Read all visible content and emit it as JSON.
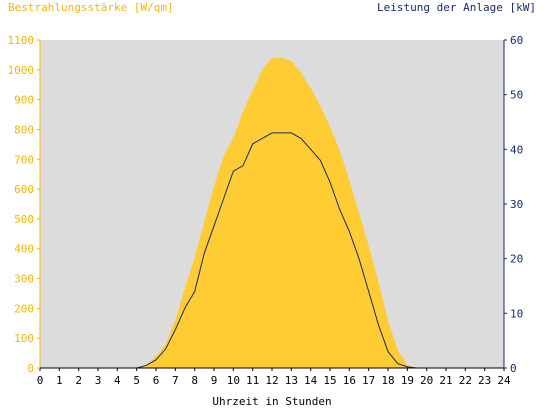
{
  "chart_data": {
    "type": "area",
    "left_axis_label": "Bestrahlungsstärke [W/qm]",
    "right_axis_label": "Leistung der Anlage [kW]",
    "xlabel": "Uhrzeit in Stunden",
    "xlim": [
      0,
      24
    ],
    "y_left_lim": [
      0,
      1100
    ],
    "y_right_lim": [
      0,
      60
    ],
    "x_ticks": [
      "0",
      "1",
      "2",
      "3",
      "4",
      "5",
      "6",
      "7",
      "8",
      "9",
      "10",
      "11",
      "12",
      "13",
      "14",
      "15",
      "16",
      "17",
      "18",
      "19",
      "20",
      "21",
      "22",
      "23",
      "24"
    ],
    "y_left_ticks": [
      "0",
      "100",
      "200",
      "300",
      "400",
      "500",
      "600",
      "700",
      "800",
      "900",
      "1000",
      "1100"
    ],
    "y_right_ticks": [
      "0",
      "10",
      "20",
      "30",
      "40",
      "50",
      "60"
    ],
    "grid": false,
    "colors": {
      "irradiance": "#ffcc33",
      "power": "#1a2a6c",
      "background": "#dcdcdc"
    },
    "series": [
      {
        "name": "Bestrahlungsstärke [W/qm]",
        "axis": "left",
        "type": "area",
        "x": [
          0,
          5.0,
          5.5,
          6.0,
          6.5,
          7.0,
          7.5,
          8.0,
          8.5,
          9.0,
          9.5,
          10.0,
          10.5,
          11.0,
          11.5,
          12.0,
          12.5,
          13.0,
          13.5,
          14.0,
          14.5,
          15.0,
          15.5,
          16.0,
          16.5,
          17.0,
          17.5,
          18.0,
          18.5,
          19.0,
          19.5,
          24
        ],
        "values": [
          0,
          0,
          10,
          40,
          80,
          160,
          270,
          370,
          490,
          610,
          710,
          770,
          860,
          930,
          1000,
          1040,
          1040,
          1030,
          990,
          940,
          880,
          810,
          730,
          630,
          520,
          410,
          290,
          160,
          60,
          10,
          0,
          0
        ]
      },
      {
        "name": "Leistung der Anlage [kW]",
        "axis": "right",
        "type": "line",
        "x": [
          0,
          5.0,
          5.5,
          6.0,
          6.5,
          7.0,
          7.5,
          8.0,
          8.5,
          9.0,
          9.5,
          10.0,
          10.5,
          11.0,
          11.5,
          12.0,
          12.5,
          13.0,
          13.5,
          14.0,
          14.5,
          15.0,
          15.5,
          16.0,
          16.5,
          17.0,
          17.5,
          18.0,
          18.5,
          19.0,
          19.5,
          24
        ],
        "values": [
          0,
          0,
          0.5,
          1.5,
          3.5,
          7,
          11,
          14,
          21,
          26,
          31,
          36,
          37,
          41,
          42,
          43,
          43,
          43,
          42,
          40,
          38,
          34,
          29,
          25,
          20,
          14,
          8,
          3,
          0.8,
          0.2,
          0,
          0
        ]
      }
    ]
  }
}
